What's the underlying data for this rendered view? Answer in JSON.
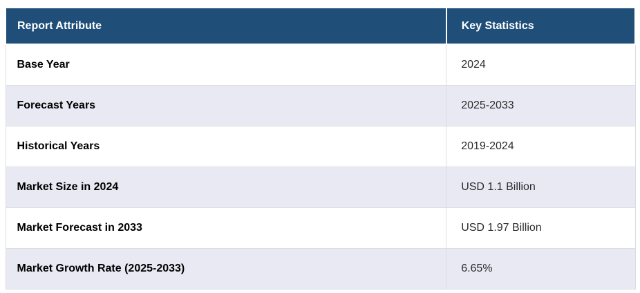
{
  "table": {
    "columns": [
      {
        "label": "Report Attribute"
      },
      {
        "label": "Key Statistics"
      }
    ],
    "rows": [
      {
        "attribute": "Base Year",
        "value": "2024"
      },
      {
        "attribute": "Forecast Years",
        "value": "2025-2033"
      },
      {
        "attribute": "Historical Years",
        "value": "2019-2024"
      },
      {
        "attribute": "Market Size in 2024",
        "value": "USD 1.1 Billion"
      },
      {
        "attribute": "Market Forecast in 2033",
        "value": "USD 1.97 Billion"
      },
      {
        "attribute": "Market Growth Rate (2025-2033)",
        "value": "6.65%"
      }
    ],
    "colors": {
      "header_bg": "#1F4E79",
      "header_text": "#FFFFFF",
      "row_bg": "#FFFFFF",
      "row_alt_bg": "#E8E9F3",
      "border": "#DCDDE2",
      "attribute_text": "#000000",
      "value_text": "#2B2B2B",
      "page_bg": "#FFFFFF"
    }
  }
}
